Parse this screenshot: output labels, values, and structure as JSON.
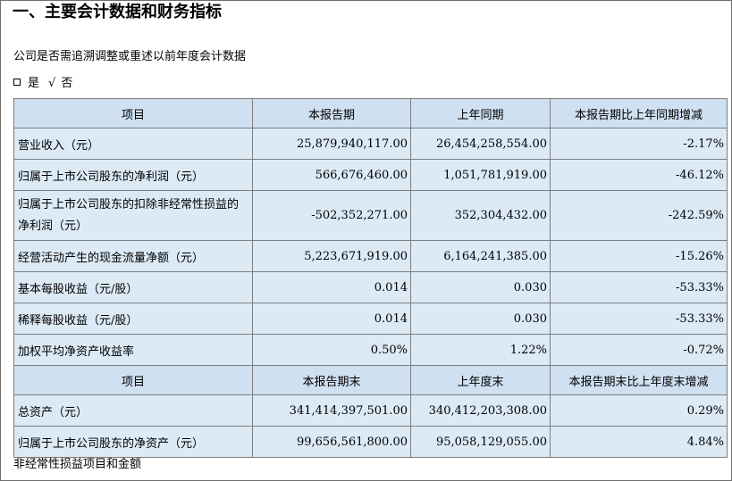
{
  "title": "一、主要会计数据和财务指标",
  "question": "公司是否需追溯调整或重述以前年度会计数据",
  "choice": {
    "yes_label": "是",
    "check_mark": "√",
    "no_label": "否"
  },
  "table1": {
    "headers": [
      "项目",
      "本报告期",
      "上年同期",
      "本报告期比上年同期增减"
    ],
    "rows": [
      {
        "item": "营业收入（元）",
        "current": "25,879,940,117.00",
        "prior": "26,454,258,554.00",
        "change": "-2.17%"
      },
      {
        "item": "归属于上市公司股东的净利润（元）",
        "current": "566,676,460.00",
        "prior": "1,051,781,919.00",
        "change": "-46.12%"
      },
      {
        "item": "归属于上市公司股东的扣除非经常性损益的净利润（元）",
        "current": "-502,352,271.00",
        "prior": "352,304,432.00",
        "change": "-242.59%"
      },
      {
        "item": "经营活动产生的现金流量净额（元）",
        "current": "5,223,671,919.00",
        "prior": "6,164,241,385.00",
        "change": "-15.26%"
      },
      {
        "item": "基本每股收益（元/股）",
        "current": "0.014",
        "prior": "0.030",
        "change": "-53.33%"
      },
      {
        "item": "稀释每股收益（元/股）",
        "current": "0.014",
        "prior": "0.030",
        "change": "-53.33%"
      },
      {
        "item": "加权平均净资产收益率",
        "current": "0.50%",
        "prior": "1.22%",
        "change": "-0.72%"
      }
    ]
  },
  "table2": {
    "headers": [
      "项目",
      "本报告期末",
      "上年度末",
      "本报告期末比上年度末增减"
    ],
    "rows": [
      {
        "item": "总资产（元）",
        "current": "341,414,397,501.00",
        "prior": "340,412,203,308.00",
        "change": "0.29%"
      },
      {
        "item": "归属于上市公司股东的净资产（元）",
        "current": "99,656,561,800.00",
        "prior": "95,058,129,055.00",
        "change": "4.84%"
      }
    ]
  },
  "footer": "非经常性损益项目和金额"
}
